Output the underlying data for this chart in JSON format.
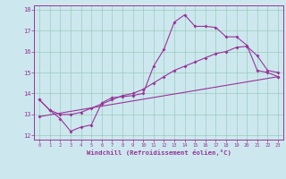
{
  "xlabel": "Windchill (Refroidissement éolien,°C)",
  "bg_color": "#cce8ee",
  "line_color": "#993399",
  "grid_color": "#99ccbb",
  "xlim": [
    -0.5,
    23.5
  ],
  "ylim": [
    11.8,
    18.2
  ],
  "xticks": [
    0,
    1,
    2,
    3,
    4,
    5,
    6,
    7,
    8,
    9,
    10,
    11,
    12,
    13,
    14,
    15,
    16,
    17,
    18,
    19,
    20,
    21,
    22,
    23
  ],
  "yticks": [
    12,
    13,
    14,
    15,
    16,
    17,
    18
  ],
  "series1_x": [
    0,
    1,
    2,
    3,
    4,
    5,
    6,
    7,
    8,
    9,
    10,
    11,
    12,
    13,
    14,
    15,
    16,
    17,
    18,
    19,
    20,
    21,
    22,
    23
  ],
  "series1_y": [
    13.7,
    13.2,
    12.8,
    12.2,
    12.4,
    12.5,
    13.55,
    13.8,
    13.85,
    13.9,
    14.0,
    15.3,
    16.1,
    17.4,
    17.75,
    17.2,
    17.2,
    17.15,
    16.7,
    16.7,
    16.3,
    15.1,
    15.0,
    14.8
  ],
  "series2_x": [
    0,
    1,
    2,
    3,
    4,
    5,
    6,
    7,
    8,
    9,
    10,
    11,
    12,
    13,
    14,
    15,
    16,
    17,
    18,
    19,
    20,
    21,
    22,
    23
  ],
  "series2_y": [
    13.7,
    13.2,
    13.0,
    13.0,
    13.1,
    13.3,
    13.5,
    13.7,
    13.9,
    14.0,
    14.2,
    14.5,
    14.8,
    15.1,
    15.3,
    15.5,
    15.7,
    15.9,
    16.0,
    16.2,
    16.25,
    15.8,
    15.1,
    15.0
  ],
  "series3_x": [
    0,
    23
  ],
  "series3_y": [
    12.9,
    14.8
  ]
}
